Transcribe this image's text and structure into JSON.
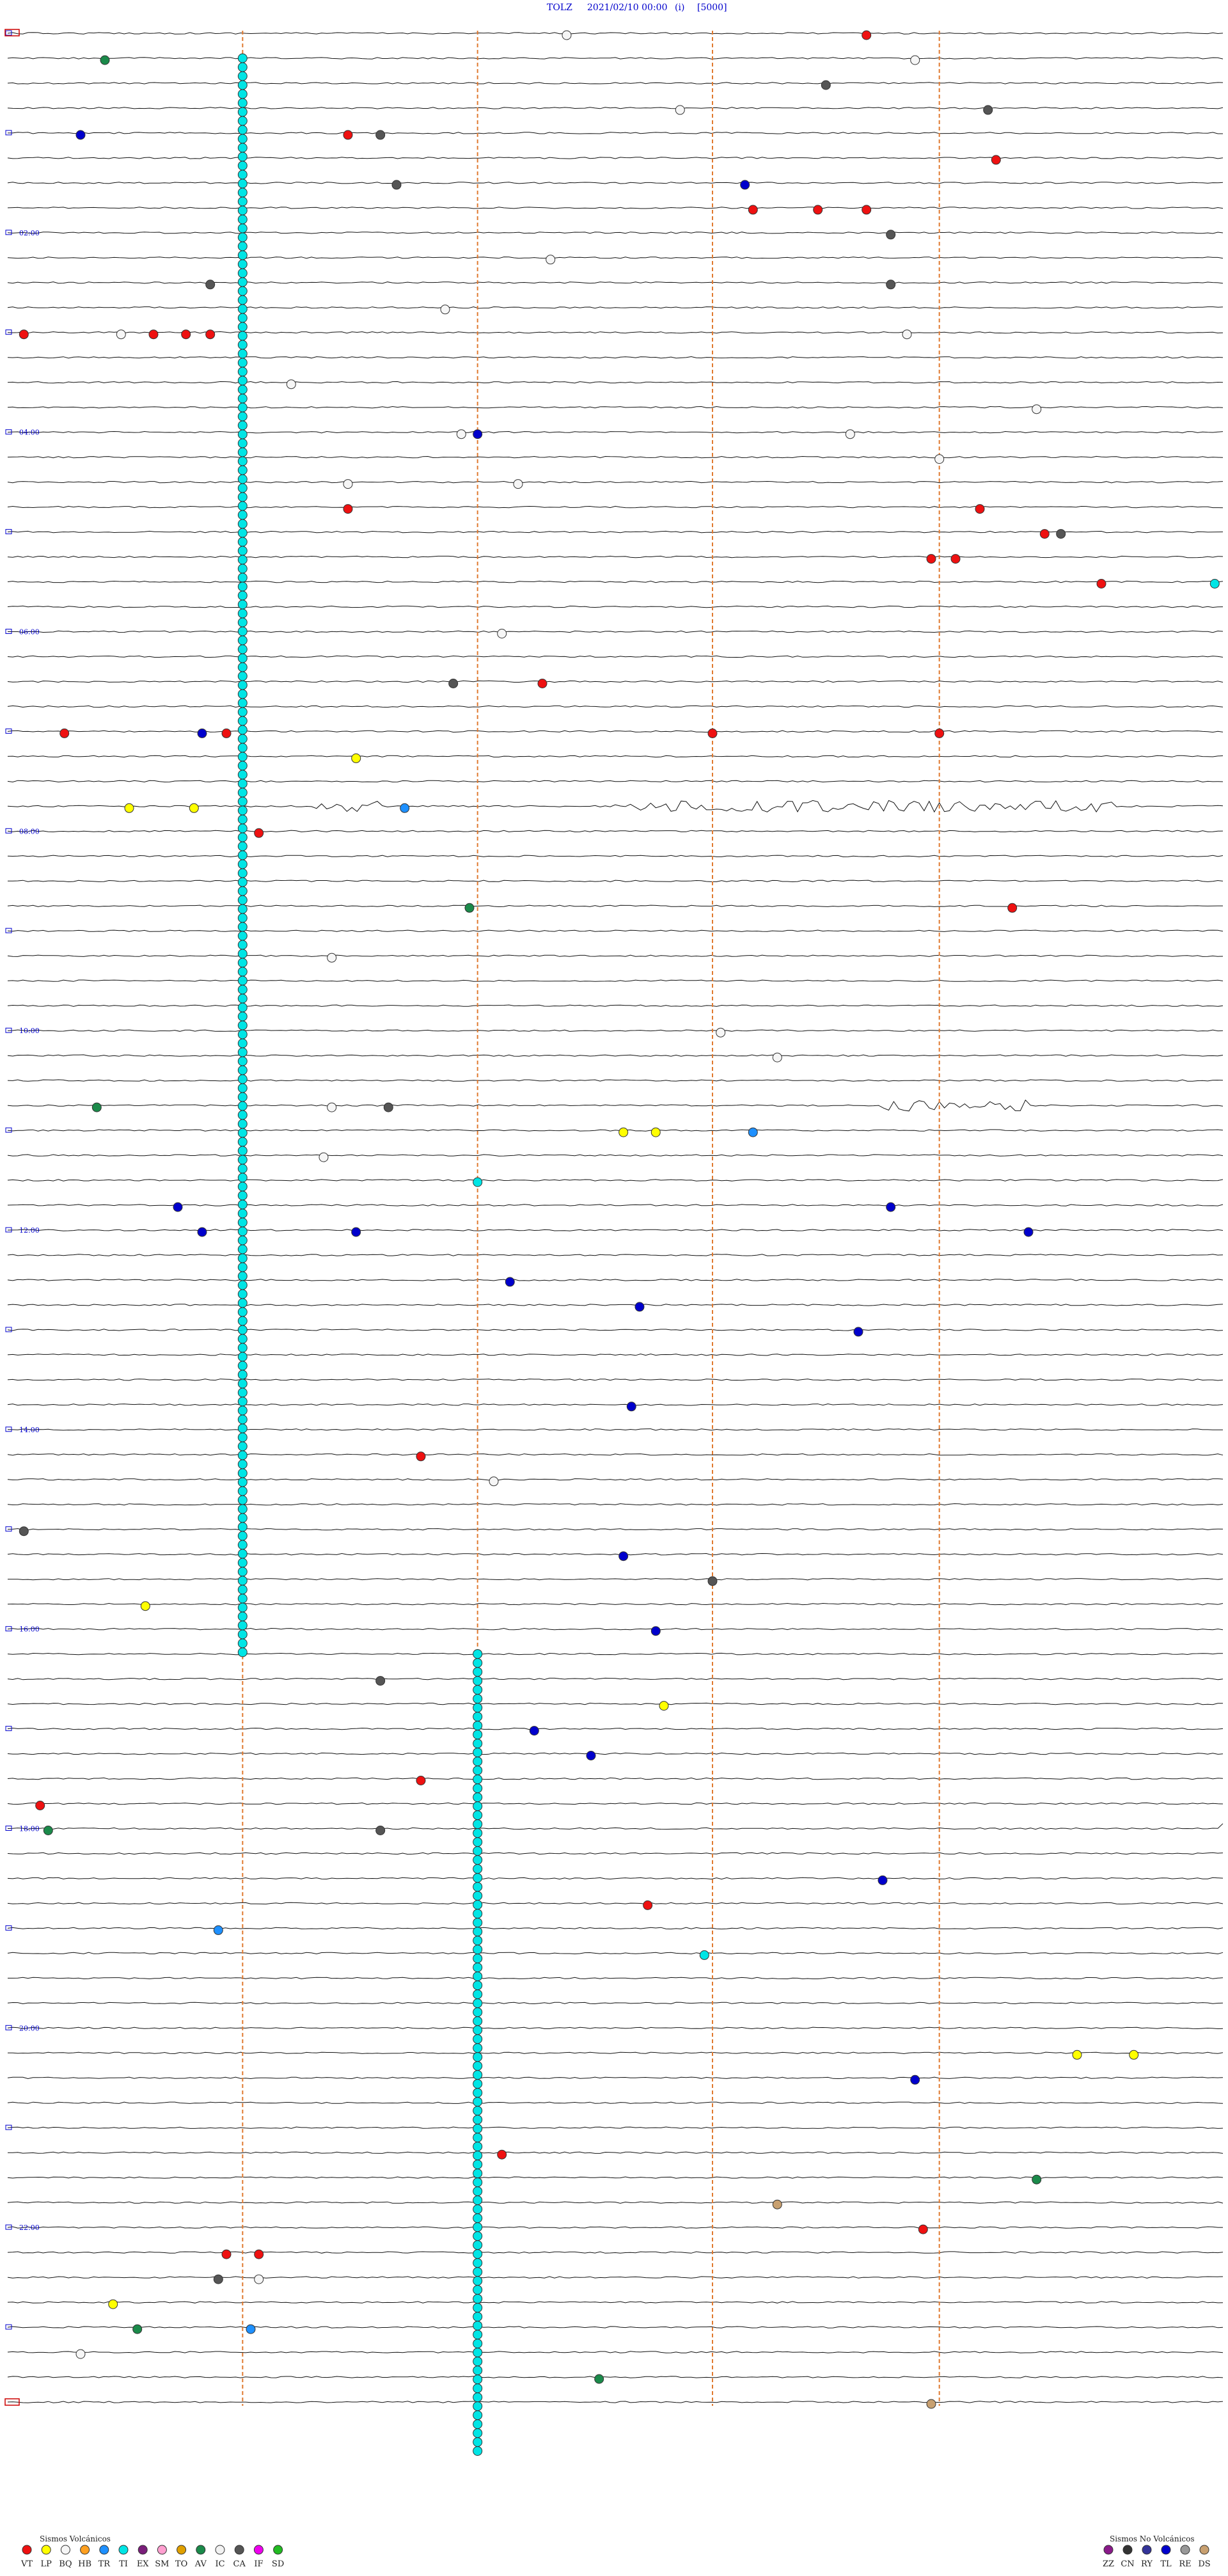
{
  "header": {
    "station": "TOLZ",
    "datetime": "2021/02/10 00:00",
    "channel": "(i)",
    "gain": "[5000]"
  },
  "chart_data": {
    "type": "scatter",
    "description_kind": "helicorder",
    "title": "TOLZ    2021/02/10 00:00    (i)    [5000]",
    "grid": true,
    "trace_count": 96,
    "minutes_per_trace": 15,
    "time_labels": [
      "02:00",
      "04:00",
      "06:00",
      "08:00",
      "10:00",
      "12:00",
      "14:00",
      "16:00",
      "18:00",
      "20:00",
      "22:00"
    ],
    "vertical_markers_minute": [
      2.9,
      5.8,
      8.7,
      11.5
    ],
    "event_colors": {
      "VT": "#ee1111",
      "LP": "#ffff00",
      "BQ": "#f6f6f6",
      "HB": "#ffa020",
      "TR": "#1e90ff",
      "TI": "#00e5e5",
      "EX": "#7a1e7a",
      "SM": "#ff9fd0",
      "TO": "#e0a000",
      "AV": "#1b8a4a",
      "IC": "#f2f2f2",
      "CA": "#555555",
      "IF": "#ee00ee",
      "SD": "#22bb22",
      "ZZ": "#8a1a8a",
      "CN": "#333333",
      "RY": "#333399",
      "TL": "#0000cc",
      "RE": "#999999",
      "DS": "#c8a070"
    },
    "events": [
      {
        "trace": 0,
        "minute": 6.9,
        "type": "BQ"
      },
      {
        "trace": 0,
        "minute": 10.6,
        "type": "VT"
      },
      {
        "trace": 1,
        "minute": 1.2,
        "type": "AV"
      },
      {
        "trace": 1,
        "minute": 11.2,
        "type": "BQ"
      },
      {
        "trace": 2,
        "minute": 10.1,
        "type": "CA"
      },
      {
        "trace": 3,
        "minute": 8.3,
        "type": "BQ"
      },
      {
        "trace": 3,
        "minute": 12.1,
        "type": "CA"
      },
      {
        "trace": 4,
        "minute": 0.9,
        "type": "TL"
      },
      {
        "trace": 4,
        "minute": 4.2,
        "type": "VT"
      },
      {
        "trace": 4,
        "minute": 4.6,
        "type": "CA"
      },
      {
        "trace": 5,
        "minute": 12.2,
        "type": "VT"
      },
      {
        "trace": 6,
        "minute": 4.8,
        "type": "CA"
      },
      {
        "trace": 6,
        "minute": 9.1,
        "type": "TL"
      },
      {
        "trace": 7,
        "minute": 9.2,
        "type": "VT"
      },
      {
        "trace": 7,
        "minute": 10.0,
        "type": "VT"
      },
      {
        "trace": 7,
        "minute": 10.6,
        "type": "VT"
      },
      {
        "trace": 8,
        "minute": 10.9,
        "type": "CA"
      },
      {
        "trace": 9,
        "minute": 6.7,
        "type": "BQ"
      },
      {
        "trace": 10,
        "minute": 2.5,
        "type": "CA"
      },
      {
        "trace": 10,
        "minute": 10.9,
        "type": "CA"
      },
      {
        "trace": 11,
        "minute": 5.4,
        "type": "BQ"
      },
      {
        "trace": 12,
        "minute": 0.2,
        "type": "VT"
      },
      {
        "trace": 12,
        "minute": 1.4,
        "type": "BQ"
      },
      {
        "trace": 12,
        "minute": 1.8,
        "type": "VT"
      },
      {
        "trace": 12,
        "minute": 2.2,
        "type": "VT"
      },
      {
        "trace": 12,
        "minute": 2.5,
        "type": "VT"
      },
      {
        "trace": 12,
        "minute": 11.1,
        "type": "BQ"
      },
      {
        "trace": 14,
        "minute": 3.5,
        "type": "BQ"
      },
      {
        "trace": 15,
        "minute": 12.7,
        "type": "BQ"
      },
      {
        "trace": 16,
        "minute": 5.6,
        "type": "BQ"
      },
      {
        "trace": 16,
        "minute": 5.8,
        "type": "TL"
      },
      {
        "trace": 16,
        "minute": 10.4,
        "type": "BQ"
      },
      {
        "trace": 17,
        "minute": 11.5,
        "type": "BQ"
      },
      {
        "trace": 18,
        "minute": 4.2,
        "type": "BQ"
      },
      {
        "trace": 18,
        "minute": 6.3,
        "type": "BQ"
      },
      {
        "trace": 19,
        "minute": 4.2,
        "type": "VT"
      },
      {
        "trace": 19,
        "minute": 12.0,
        "type": "VT"
      },
      {
        "trace": 20,
        "minute": 12.8,
        "type": "VT"
      },
      {
        "trace": 20,
        "minute": 13.0,
        "type": "CA"
      },
      {
        "trace": 21,
        "minute": 11.4,
        "type": "VT"
      },
      {
        "trace": 21,
        "minute": 11.7,
        "type": "VT"
      },
      {
        "trace": 22,
        "minute": 13.5,
        "type": "VT"
      },
      {
        "trace": 22,
        "minute": 14.9,
        "type": "TI"
      },
      {
        "trace": 24,
        "minute": 6.1,
        "type": "BQ"
      },
      {
        "trace": 26,
        "minute": 5.5,
        "type": "CA"
      },
      {
        "trace": 26,
        "minute": 6.6,
        "type": "VT"
      },
      {
        "trace": 28,
        "minute": 0.7,
        "type": "VT"
      },
      {
        "trace": 28,
        "minute": 2.4,
        "type": "TL"
      },
      {
        "trace": 28,
        "minute": 2.7,
        "type": "VT"
      },
      {
        "trace": 28,
        "minute": 8.7,
        "type": "VT"
      },
      {
        "trace": 28,
        "minute": 11.5,
        "type": "VT"
      },
      {
        "trace": 29,
        "minute": 4.3,
        "type": "LP"
      },
      {
        "trace": 31,
        "minute": 1.5,
        "type": "LP"
      },
      {
        "trace": 31,
        "minute": 2.3,
        "type": "LP"
      },
      {
        "trace": 31,
        "minute": 4.9,
        "type": "TR"
      },
      {
        "trace": 32,
        "minute": 3.1,
        "type": "VT"
      },
      {
        "trace": 35,
        "minute": 5.7,
        "type": "AV"
      },
      {
        "trace": 35,
        "minute": 12.4,
        "type": "VT"
      },
      {
        "trace": 37,
        "minute": 4.0,
        "type": "BQ"
      },
      {
        "trace": 40,
        "minute": 8.8,
        "type": "BQ"
      },
      {
        "trace": 41,
        "minute": 9.5,
        "type": "BQ"
      },
      {
        "trace": 43,
        "minute": 1.1,
        "type": "AV"
      },
      {
        "trace": 43,
        "minute": 4.0,
        "type": "BQ"
      },
      {
        "trace": 43,
        "minute": 4.7,
        "type": "CA"
      },
      {
        "trace": 44,
        "minute": 7.6,
        "type": "LP"
      },
      {
        "trace": 44,
        "minute": 8.0,
        "type": "LP"
      },
      {
        "trace": 44,
        "minute": 9.2,
        "type": "TR"
      },
      {
        "trace": 45,
        "minute": 3.9,
        "type": "BQ"
      },
      {
        "trace": 46,
        "minute": 5.8,
        "type": "TI"
      },
      {
        "trace": 47,
        "minute": 2.1,
        "type": "TL"
      },
      {
        "trace": 47,
        "minute": 10.9,
        "type": "TL"
      },
      {
        "trace": 48,
        "minute": 2.4,
        "type": "TL"
      },
      {
        "trace": 48,
        "minute": 4.3,
        "type": "TL"
      },
      {
        "trace": 48,
        "minute": 12.6,
        "type": "TL"
      },
      {
        "trace": 50,
        "minute": 6.2,
        "type": "TL"
      },
      {
        "trace": 51,
        "minute": 7.8,
        "type": "TL"
      },
      {
        "trace": 52,
        "minute": 10.5,
        "type": "TL"
      },
      {
        "trace": 55,
        "minute": 7.7,
        "type": "TL"
      },
      {
        "trace": 57,
        "minute": 5.1,
        "type": "VT"
      },
      {
        "trace": 58,
        "minute": 6.0,
        "type": "BQ"
      },
      {
        "trace": 60,
        "minute": 0.2,
        "type": "CA"
      },
      {
        "trace": 61,
        "minute": 7.6,
        "type": "TL"
      },
      {
        "trace": 62,
        "minute": 8.7,
        "type": "CA"
      },
      {
        "trace": 63,
        "minute": 1.7,
        "type": "LP"
      },
      {
        "trace": 64,
        "minute": 8.0,
        "type": "TL"
      },
      {
        "trace": 66,
        "minute": 4.6,
        "type": "CA"
      },
      {
        "trace": 67,
        "minute": 8.1,
        "type": "LP"
      },
      {
        "trace": 68,
        "minute": 6.5,
        "type": "TL"
      },
      {
        "trace": 69,
        "minute": 7.2,
        "type": "TL"
      },
      {
        "trace": 70,
        "minute": 5.1,
        "type": "VT"
      },
      {
        "trace": 71,
        "minute": 0.4,
        "type": "VT"
      },
      {
        "trace": 72,
        "minute": 0.5,
        "type": "AV"
      },
      {
        "trace": 72,
        "minute": 4.6,
        "type": "CA"
      },
      {
        "trace": 74,
        "minute": 10.8,
        "type": "TL"
      },
      {
        "trace": 75,
        "minute": 7.9,
        "type": "VT"
      },
      {
        "trace": 76,
        "minute": 2.6,
        "type": "TR"
      },
      {
        "trace": 77,
        "minute": 8.6,
        "type": "TI"
      },
      {
        "trace": 81,
        "minute": 13.2,
        "type": "LP"
      },
      {
        "trace": 81,
        "minute": 13.9,
        "type": "LP"
      },
      {
        "trace": 82,
        "minute": 11.2,
        "type": "TL"
      },
      {
        "trace": 85,
        "minute": 6.1,
        "type": "VT"
      },
      {
        "trace": 86,
        "minute": 12.7,
        "type": "AV"
      },
      {
        "trace": 87,
        "minute": 9.5,
        "type": "DS"
      },
      {
        "trace": 88,
        "minute": 11.3,
        "type": "VT"
      },
      {
        "trace": 89,
        "minute": 2.7,
        "type": "VT"
      },
      {
        "trace": 89,
        "minute": 3.1,
        "type": "VT"
      },
      {
        "trace": 90,
        "minute": 2.6,
        "type": "CA"
      },
      {
        "trace": 90,
        "minute": 3.1,
        "type": "BQ"
      },
      {
        "trace": 91,
        "minute": 1.3,
        "type": "LP"
      },
      {
        "trace": 92,
        "minute": 1.6,
        "type": "AV"
      },
      {
        "trace": 92,
        "minute": 3.0,
        "type": "TR"
      },
      {
        "trace": 93,
        "minute": 0.9,
        "type": "BQ"
      },
      {
        "trace": 94,
        "minute": 7.3,
        "type": "AV"
      },
      {
        "trace": 95,
        "minute": 11.4,
        "type": "DS"
      }
    ],
    "ti_sequences": [
      {
        "minute": 2.9,
        "trace_start": 1,
        "trace_end": 65
      },
      {
        "minute": 5.8,
        "trace_start": 65,
        "trace_end": 117
      }
    ],
    "legend_volcanic": {
      "title": "Sismos Volcánicos",
      "codes": [
        "VT",
        "LP",
        "BQ",
        "HB",
        "TR",
        "TI",
        "EX",
        "SM",
        "TO",
        "AV",
        "IC",
        "CA",
        "IF",
        "SD"
      ]
    },
    "legend_nonvolcanic": {
      "title": "Sismos No Volcánicos",
      "codes": [
        "ZZ",
        "CN",
        "RY",
        "TL",
        "RE",
        "DS"
      ]
    }
  }
}
